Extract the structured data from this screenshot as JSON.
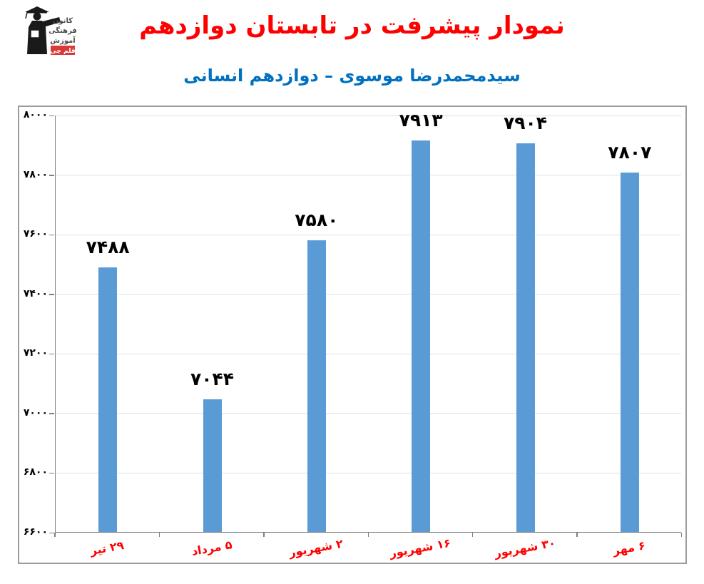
{
  "header": {
    "title": "نمودار پیشرفت در تابستان دوازدهم",
    "title_color": "#FF0000",
    "subtitle": "سیدمحمدرضا موسوی – دوازدهم انسانی",
    "subtitle_color": "#0070C0"
  },
  "logo": {
    "org_lines": [
      "کانون",
      "فرهنگی",
      "آموزش"
    ],
    "badge_label": "قلم چی",
    "badge_color": "#D93A35",
    "figure_color": "#1a1a1a",
    "text_color": "#4a4a4a"
  },
  "chart_data": {
    "type": "bar",
    "title": "نمودار پیشرفت در تابستان دوازدهم",
    "subtitle": "سیدمحمدرضا موسوی – دوازدهم انسانی",
    "categories": [
      "۲۹ تیر",
      "۵ مرداد",
      "۲ شهریور",
      "۱۶ شهریور",
      "۳۰ شهریور",
      "۶ مهر"
    ],
    "values": [
      7488,
      7044,
      7580,
      7913,
      7904,
      7807
    ],
    "value_labels": [
      "۷۴۸۸",
      "۷۰۴۴",
      "۷۵۸۰",
      "۷۹۱۳",
      "۷۹۰۴",
      "۷۸۰۷"
    ],
    "y_ticks": [
      6600,
      6800,
      7000,
      7200,
      7400,
      7600,
      7800,
      8000
    ],
    "y_tick_labels": [
      "۶۶۰۰",
      "۶۸۰۰",
      "۷۰۰۰",
      "۷۲۰۰",
      "۷۴۰۰",
      "۷۶۰۰",
      "۷۸۰۰",
      "۸۰۰۰"
    ],
    "ylim": [
      6600,
      8000
    ],
    "xlabel": "",
    "ylabel": "",
    "grid": true,
    "legend": false,
    "bar_color": "#5B9BD5",
    "gridline_color": "#D6E2F3",
    "axis_color": "#7F7F7F",
    "category_label_color": "#FF0000",
    "value_label_color": "#000000"
  }
}
